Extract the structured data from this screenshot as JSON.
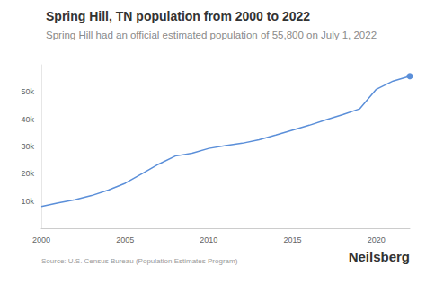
{
  "chart_data": {
    "type": "line",
    "title": "Spring Hill, TN population from 2000 to 2022",
    "subtitle": "Spring Hill had an official estimated population of 55,800 on July 1, 2022",
    "source": "Source: U.S. Census Bureau (Population Estimates Program)",
    "logo": "Neilsberg",
    "x": [
      2000,
      2001,
      2002,
      2003,
      2004,
      2005,
      2006,
      2007,
      2008,
      2009,
      2010,
      2011,
      2012,
      2013,
      2014,
      2015,
      2016,
      2017,
      2018,
      2019,
      2020,
      2021,
      2022
    ],
    "values": [
      8000,
      9300,
      10500,
      12000,
      14000,
      16500,
      20000,
      23500,
      26500,
      27500,
      29300,
      30300,
      31200,
      32500,
      34200,
      36000,
      37800,
      39800,
      41700,
      43800,
      51000,
      54000,
      55800
    ],
    "color": "#5b8fd9",
    "marker": "last",
    "xlim": [
      2000,
      2022
    ],
    "xticks": [
      2000,
      2005,
      2010,
      2015,
      2020
    ],
    "ylim": [
      0,
      60000
    ],
    "yticks": [
      {
        "value": 10000,
        "label": "10k"
      },
      {
        "value": 20000,
        "label": "20k"
      },
      {
        "value": 30000,
        "label": "30k"
      },
      {
        "value": 40000,
        "label": "40k"
      },
      {
        "value": 50000,
        "label": "50k"
      }
    ],
    "grid": false
  }
}
